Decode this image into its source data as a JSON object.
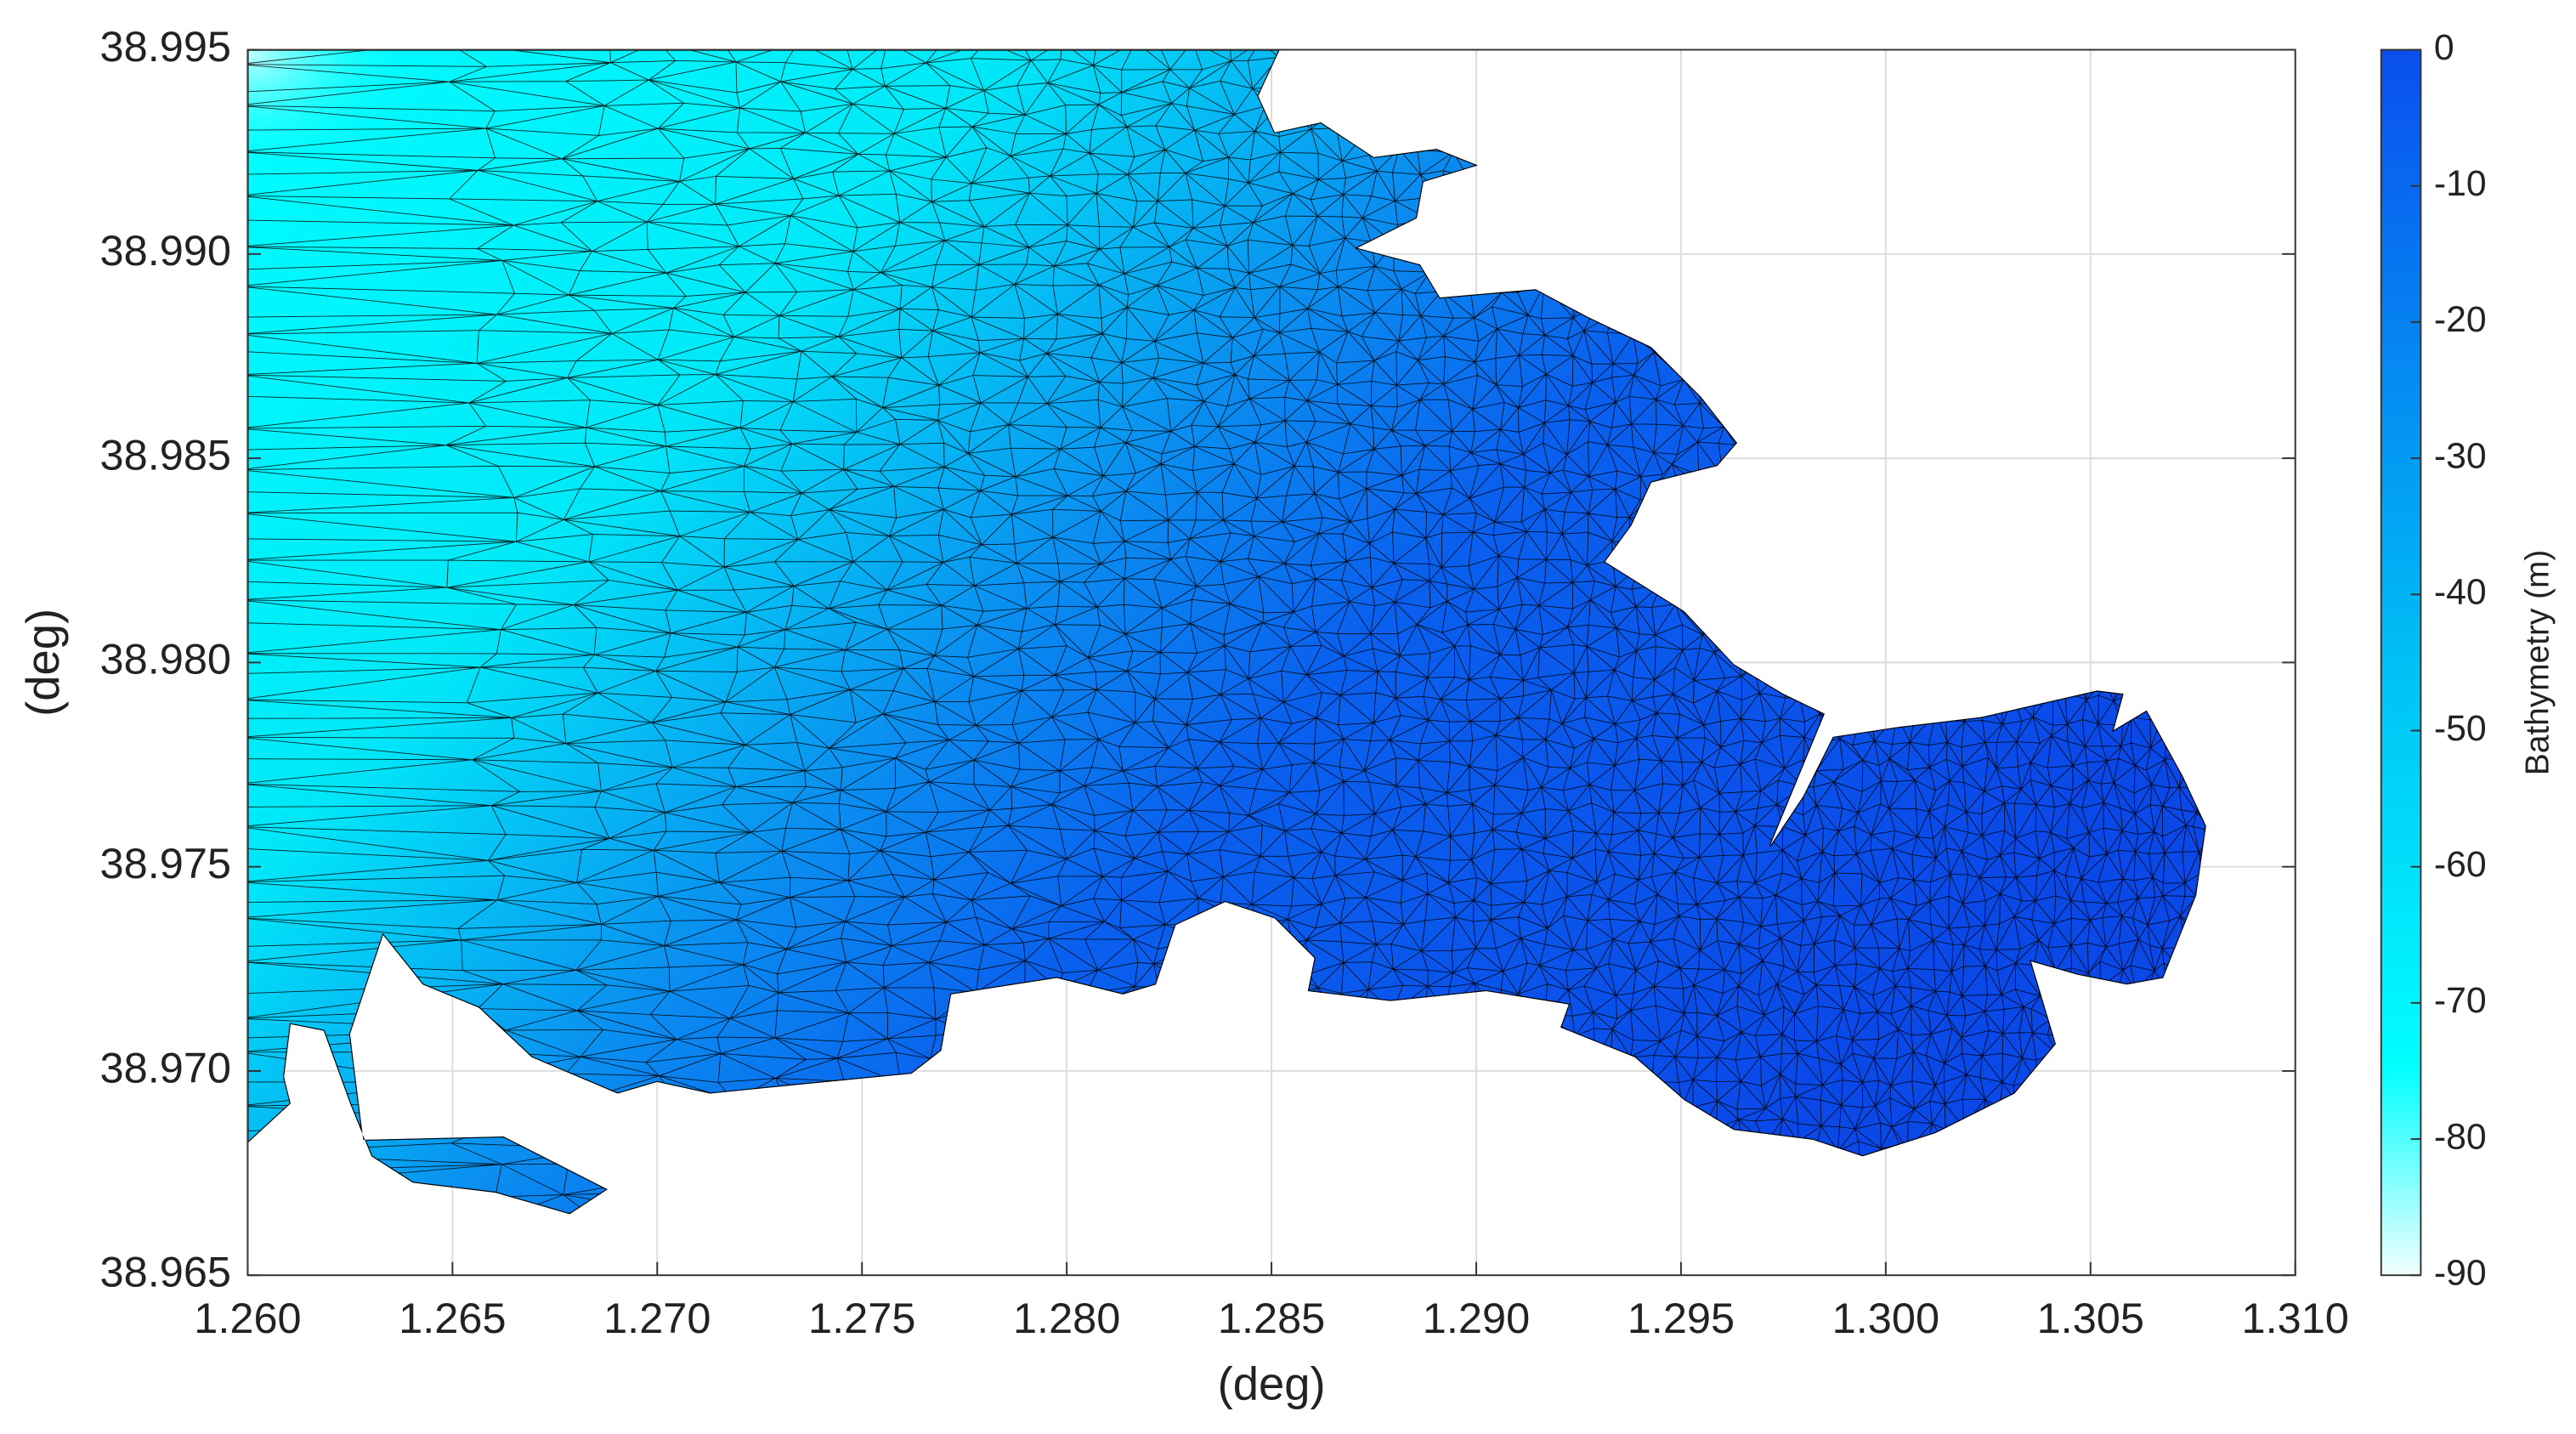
{
  "chart_data": {
    "type": "mesh",
    "xlabel": "(deg)",
    "ylabel": "(deg)",
    "xlim": [
      1.26,
      1.31
    ],
    "xticks": [
      {
        "value": 1.26,
        "label": "1.260"
      },
      1.265,
      {
        "value": 1.27,
        "label": "1.270"
      },
      1.275,
      {
        "value": 1.28,
        "label": "1.280"
      },
      1.285,
      {
        "value": 1.29,
        "label": "1.290"
      },
      1.295,
      {
        "value": 1.3,
        "label": "1.300"
      },
      1.305,
      {
        "value": 1.31,
        "label": "1.310"
      }
    ],
    "ylim": [
      38.965,
      38.995
    ],
    "yticks": [
      38.965,
      {
        "value": 38.97,
        "label": "38.970"
      },
      38.975,
      {
        "value": 38.98,
        "label": "38.980"
      },
      38.985,
      {
        "value": 38.99,
        "label": "38.990"
      },
      38.995
    ],
    "grid": true,
    "colorbar": {
      "label": "Bathymetry (m)",
      "clim": [
        -90,
        0
      ],
      "ticks": [
        0,
        -10,
        -20,
        -30,
        -40,
        -50,
        -60,
        -70,
        -80,
        -90
      ]
    }
  }
}
